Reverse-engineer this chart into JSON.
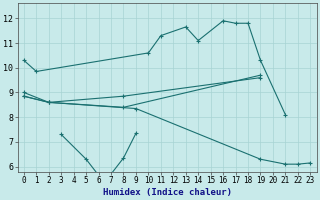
{
  "xlabel": "Humidex (Indice chaleur)",
  "background_color": "#c8eaea",
  "grid_color": "#a8d4d4",
  "line_color": "#1a7070",
  "xlim": [
    -0.5,
    23.5
  ],
  "ylim": [
    5.8,
    12.6
  ],
  "yticks": [
    6,
    7,
    8,
    9,
    10,
    11,
    12
  ],
  "xticks": [
    0,
    1,
    2,
    3,
    4,
    5,
    6,
    7,
    8,
    9,
    10,
    11,
    12,
    13,
    14,
    15,
    16,
    17,
    18,
    19,
    20,
    21,
    22,
    23
  ],
  "series1_x": [
    0,
    1,
    10,
    11,
    13,
    14,
    16,
    17,
    18,
    19,
    21
  ],
  "series1_y": [
    10.3,
    9.85,
    10.6,
    11.3,
    11.65,
    11.1,
    11.9,
    11.8,
    11.8,
    10.3,
    8.1
  ],
  "series2_x": [
    0,
    2,
    8,
    19
  ],
  "series2_y": [
    9.0,
    8.6,
    8.4,
    9.7
  ],
  "series3_x": [
    0,
    2,
    8,
    19
  ],
  "series3_y": [
    8.85,
    8.6,
    8.85,
    9.6
  ],
  "series4_x": [
    3,
    5,
    6,
    7,
    8,
    9
  ],
  "series4_y": [
    7.3,
    6.3,
    5.65,
    5.7,
    6.35,
    7.35
  ],
  "series5_x": [
    0,
    2,
    9,
    19,
    21,
    22,
    23
  ],
  "series5_y": [
    8.85,
    8.6,
    8.35,
    6.3,
    6.1,
    6.1,
    6.15
  ],
  "xlabel_fontsize": 6.5,
  "tick_fontsize": 5.5,
  "linewidth": 0.8,
  "markersize": 3.0,
  "markeredgewidth": 0.8
}
